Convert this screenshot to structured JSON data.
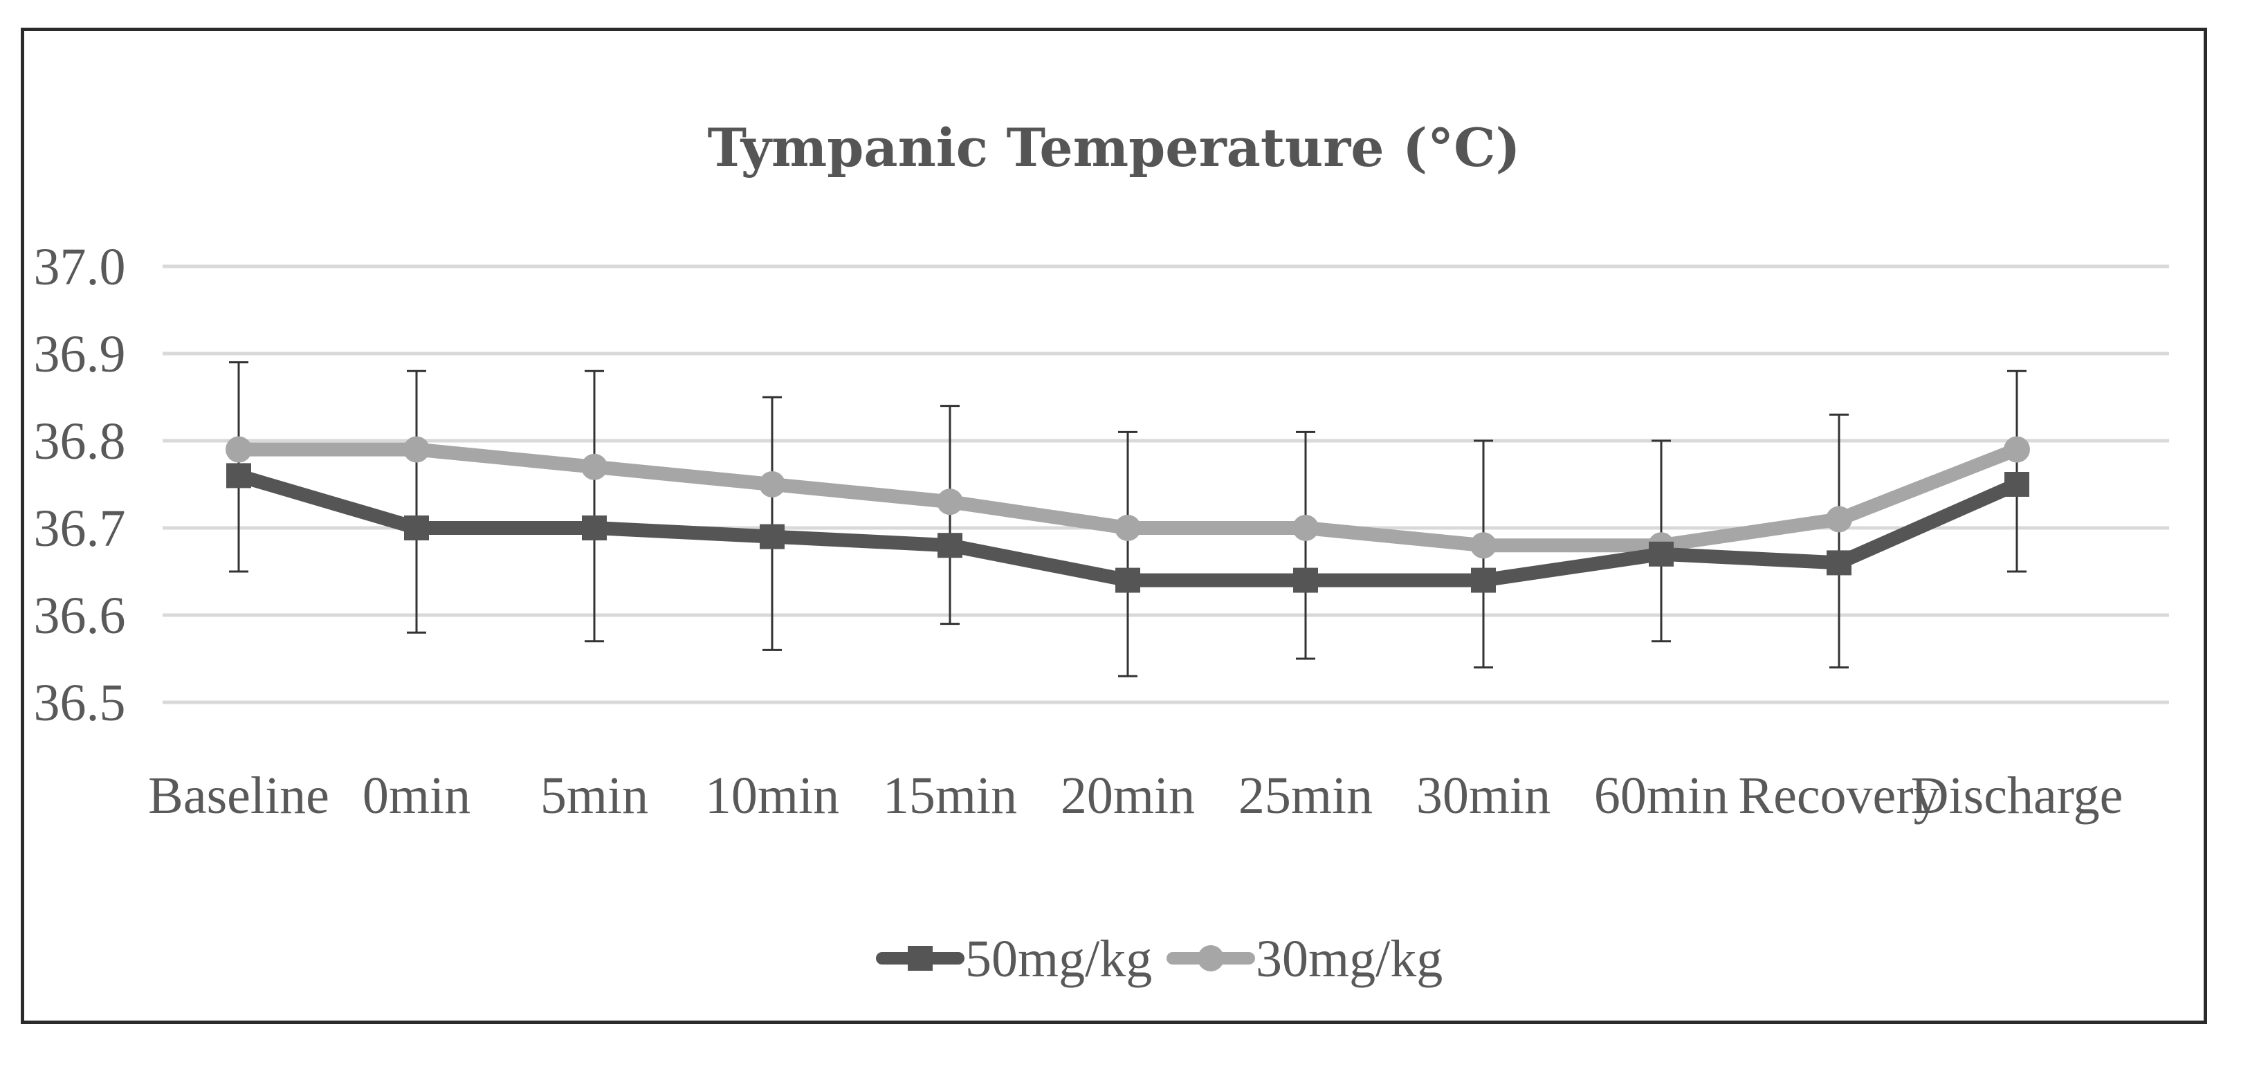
{
  "chart_data": {
    "type": "line",
    "title": "Tympanic Temperature (°C)",
    "xlabel": "",
    "ylabel": "",
    "ylim": [
      36.5,
      37.0
    ],
    "yticks": [
      "36.5",
      "36.6",
      "36.7",
      "36.8",
      "36.9",
      "37.0"
    ],
    "ytick_values": [
      36.5,
      36.6,
      36.7,
      36.8,
      36.9,
      37.0
    ],
    "grid": true,
    "legend_position": "bottom",
    "categories": [
      "Baseline",
      "0min",
      "5min",
      "10min",
      "15min",
      "20min",
      "25min",
      "30min",
      "60min",
      "Recovery",
      "Discharge"
    ],
    "series": [
      {
        "name": "50mg/kg",
        "marker": "square",
        "color": "#555555",
        "values": [
          36.76,
          36.7,
          36.7,
          36.69,
          36.68,
          36.64,
          36.64,
          36.64,
          36.67,
          36.66,
          36.75
        ],
        "error_low": [
          36.65,
          36.58,
          36.57,
          36.56,
          36.59,
          36.53,
          36.55,
          36.54,
          36.57,
          36.54,
          36.65
        ],
        "error_high": [
          36.89,
          36.88,
          36.88,
          36.85,
          36.84,
          36.81,
          36.81,
          36.8,
          36.8,
          36.83,
          36.88
        ]
      },
      {
        "name": "30mg/kg",
        "marker": "circle",
        "color": "#a6a6a6",
        "values": [
          36.79,
          36.79,
          36.77,
          36.75,
          36.73,
          36.7,
          36.7,
          36.68,
          36.68,
          36.71,
          36.79
        ]
      }
    ]
  }
}
